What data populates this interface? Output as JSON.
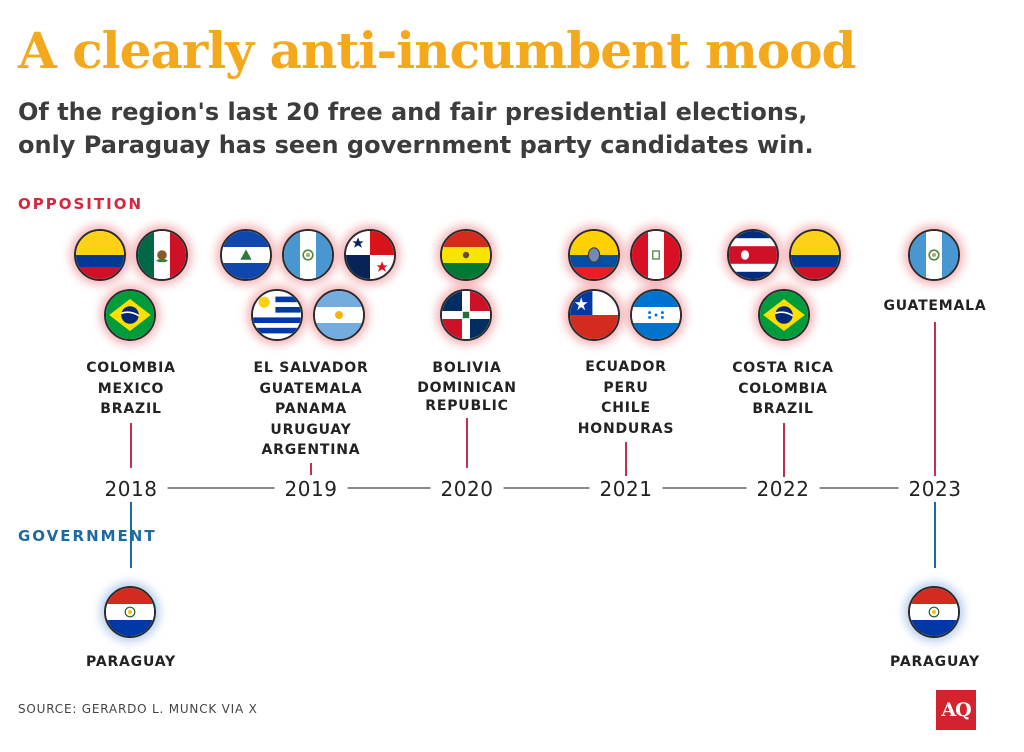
{
  "title": "A clearly anti-incumbent mood",
  "subtitle": [
    "Of the region's last 20 free and fair presidential elections,",
    "only Paraguay has seen government party candidates win."
  ],
  "labels": {
    "opposition": "OPPOSITION",
    "government": "GOVERNMENT"
  },
  "years": [
    "2018",
    "2019",
    "2020",
    "2021",
    "2022",
    "2023"
  ],
  "opposition": [
    {
      "year": "2018",
      "countries": [
        "COLOMBIA",
        "MEXICO",
        "BRAZIL"
      ]
    },
    {
      "year": "2019",
      "countries": [
        "EL SALVADOR",
        "GUATEMALA",
        "PANAMA",
        "URUGUAY",
        "ARGENTINA"
      ]
    },
    {
      "year": "2020",
      "countries": [
        "BOLIVIA",
        "DOMINICAN",
        "REPUBLIC"
      ]
    },
    {
      "year": "2021",
      "countries": [
        "ECUADOR",
        "PERU",
        "CHILE",
        "HONDURAS"
      ]
    },
    {
      "year": "2022",
      "countries": [
        "COSTA RICA",
        "COLOMBIA",
        "BRAZIL"
      ]
    },
    {
      "year": "2023",
      "countries": [
        "GUATEMALA"
      ]
    }
  ],
  "government": [
    {
      "year": "2018",
      "country": "PARAGUAY"
    },
    {
      "year": "2023",
      "country": "PARAGUAY"
    }
  ],
  "source": "SOURCE: GERARDO L. MUNCK VIA X",
  "logo": "AQ",
  "colors": {
    "title": "#f4a81c",
    "opposition": "#d6253c",
    "government": "#1d6aa3",
    "connector_red": "#c2304f"
  }
}
